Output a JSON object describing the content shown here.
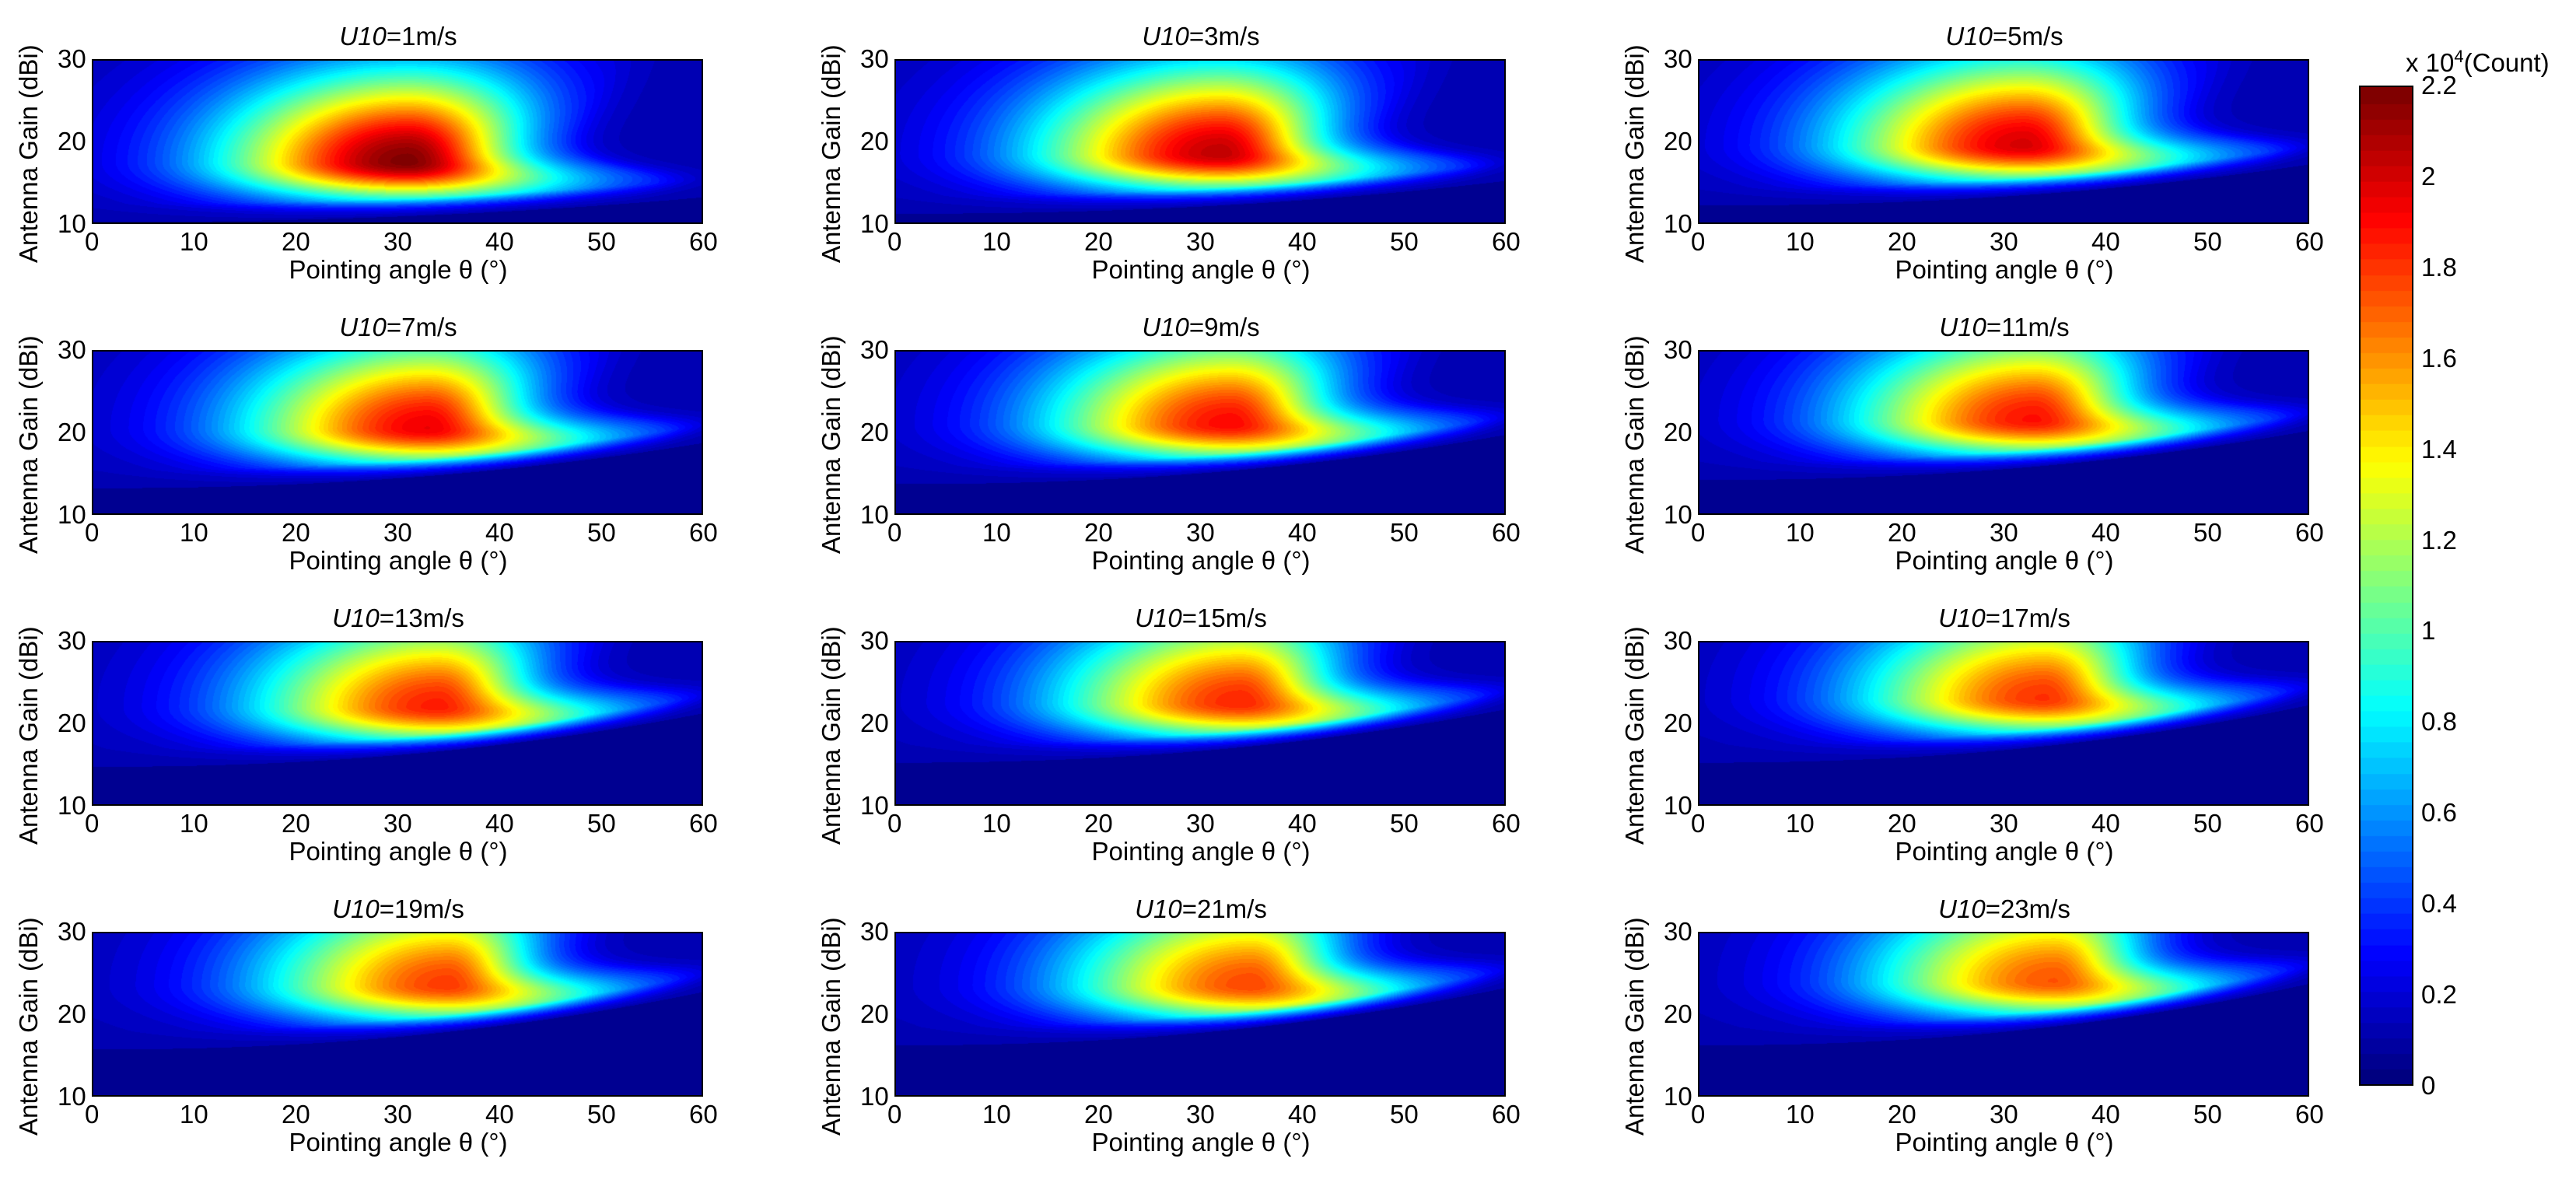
{
  "chart_data": {
    "type": "heatmap",
    "colormap": "jet",
    "xlabel": "Pointing angle θ (°)",
    "ylabel": "Antenna Gain (dBi)",
    "xlim": [
      0,
      60
    ],
    "ylim": [
      10,
      30
    ],
    "xticks": [
      "0",
      "10",
      "20",
      "30",
      "40",
      "50",
      "60"
    ],
    "yticks": [
      "10",
      "20",
      "30"
    ],
    "panels": [
      {
        "title_var": "U10",
        "title_rest": "=1m/s",
        "peak": [
          31,
          17.5
        ],
        "max": 2.2,
        "low_edge": 10.5,
        "slope": 3
      },
      {
        "title_var": "U10",
        "title_rest": "=3m/s",
        "peak": [
          32,
          18.5
        ],
        "max": 2.05,
        "low_edge": 11.5,
        "slope": 4
      },
      {
        "title_var": "U10",
        "title_rest": "=5m/s",
        "peak": [
          32,
          19.5
        ],
        "max": 2.0,
        "low_edge": 12.5,
        "slope": 5
      },
      {
        "title_var": "U10",
        "title_rest": "=7m/s",
        "peak": [
          33,
          20.5
        ],
        "max": 1.95,
        "low_edge": 13.5,
        "slope": 5.5
      },
      {
        "title_var": "U10",
        "title_rest": "=9m/s",
        "peak": [
          33,
          21
        ],
        "max": 1.9,
        "low_edge": 14,
        "slope": 6
      },
      {
        "title_var": "U10",
        "title_rest": "=11m/s",
        "peak": [
          33,
          21.5
        ],
        "max": 1.88,
        "low_edge": 14.5,
        "slope": 6
      },
      {
        "title_var": "U10",
        "title_rest": "=13m/s",
        "peak": [
          34,
          22
        ],
        "max": 1.85,
        "low_edge": 15,
        "slope": 6.5
      },
      {
        "title_var": "U10",
        "title_rest": "=15m/s",
        "peak": [
          34,
          22.5
        ],
        "max": 1.83,
        "low_edge": 15.5,
        "slope": 6.5
      },
      {
        "title_var": "U10",
        "title_rest": "=17m/s",
        "peak": [
          34,
          23
        ],
        "max": 1.8,
        "low_edge": 15.5,
        "slope": 7
      },
      {
        "title_var": "U10",
        "title_rest": "=19m/s",
        "peak": [
          35,
          23.5
        ],
        "max": 1.78,
        "low_edge": 16,
        "slope": 7
      },
      {
        "title_var": "U10",
        "title_rest": "=21m/s",
        "peak": [
          35,
          23.5
        ],
        "max": 1.75,
        "low_edge": 16.5,
        "slope": 7
      },
      {
        "title_var": "U10",
        "title_rest": "=23m/s",
        "peak": [
          35,
          24
        ],
        "max": 1.72,
        "low_edge": 16.5,
        "slope": 7.5
      }
    ],
    "colorbar": {
      "min": 0,
      "max": 2.2,
      "ticks": [
        "0",
        "0.2",
        "0.4",
        "0.6",
        "0.8",
        "1",
        "1.2",
        "1.4",
        "1.6",
        "1.8",
        "2",
        "2.2"
      ],
      "unit_prefix": "x 10",
      "unit_exp": "4",
      "unit_suffix": "(Count)"
    }
  }
}
